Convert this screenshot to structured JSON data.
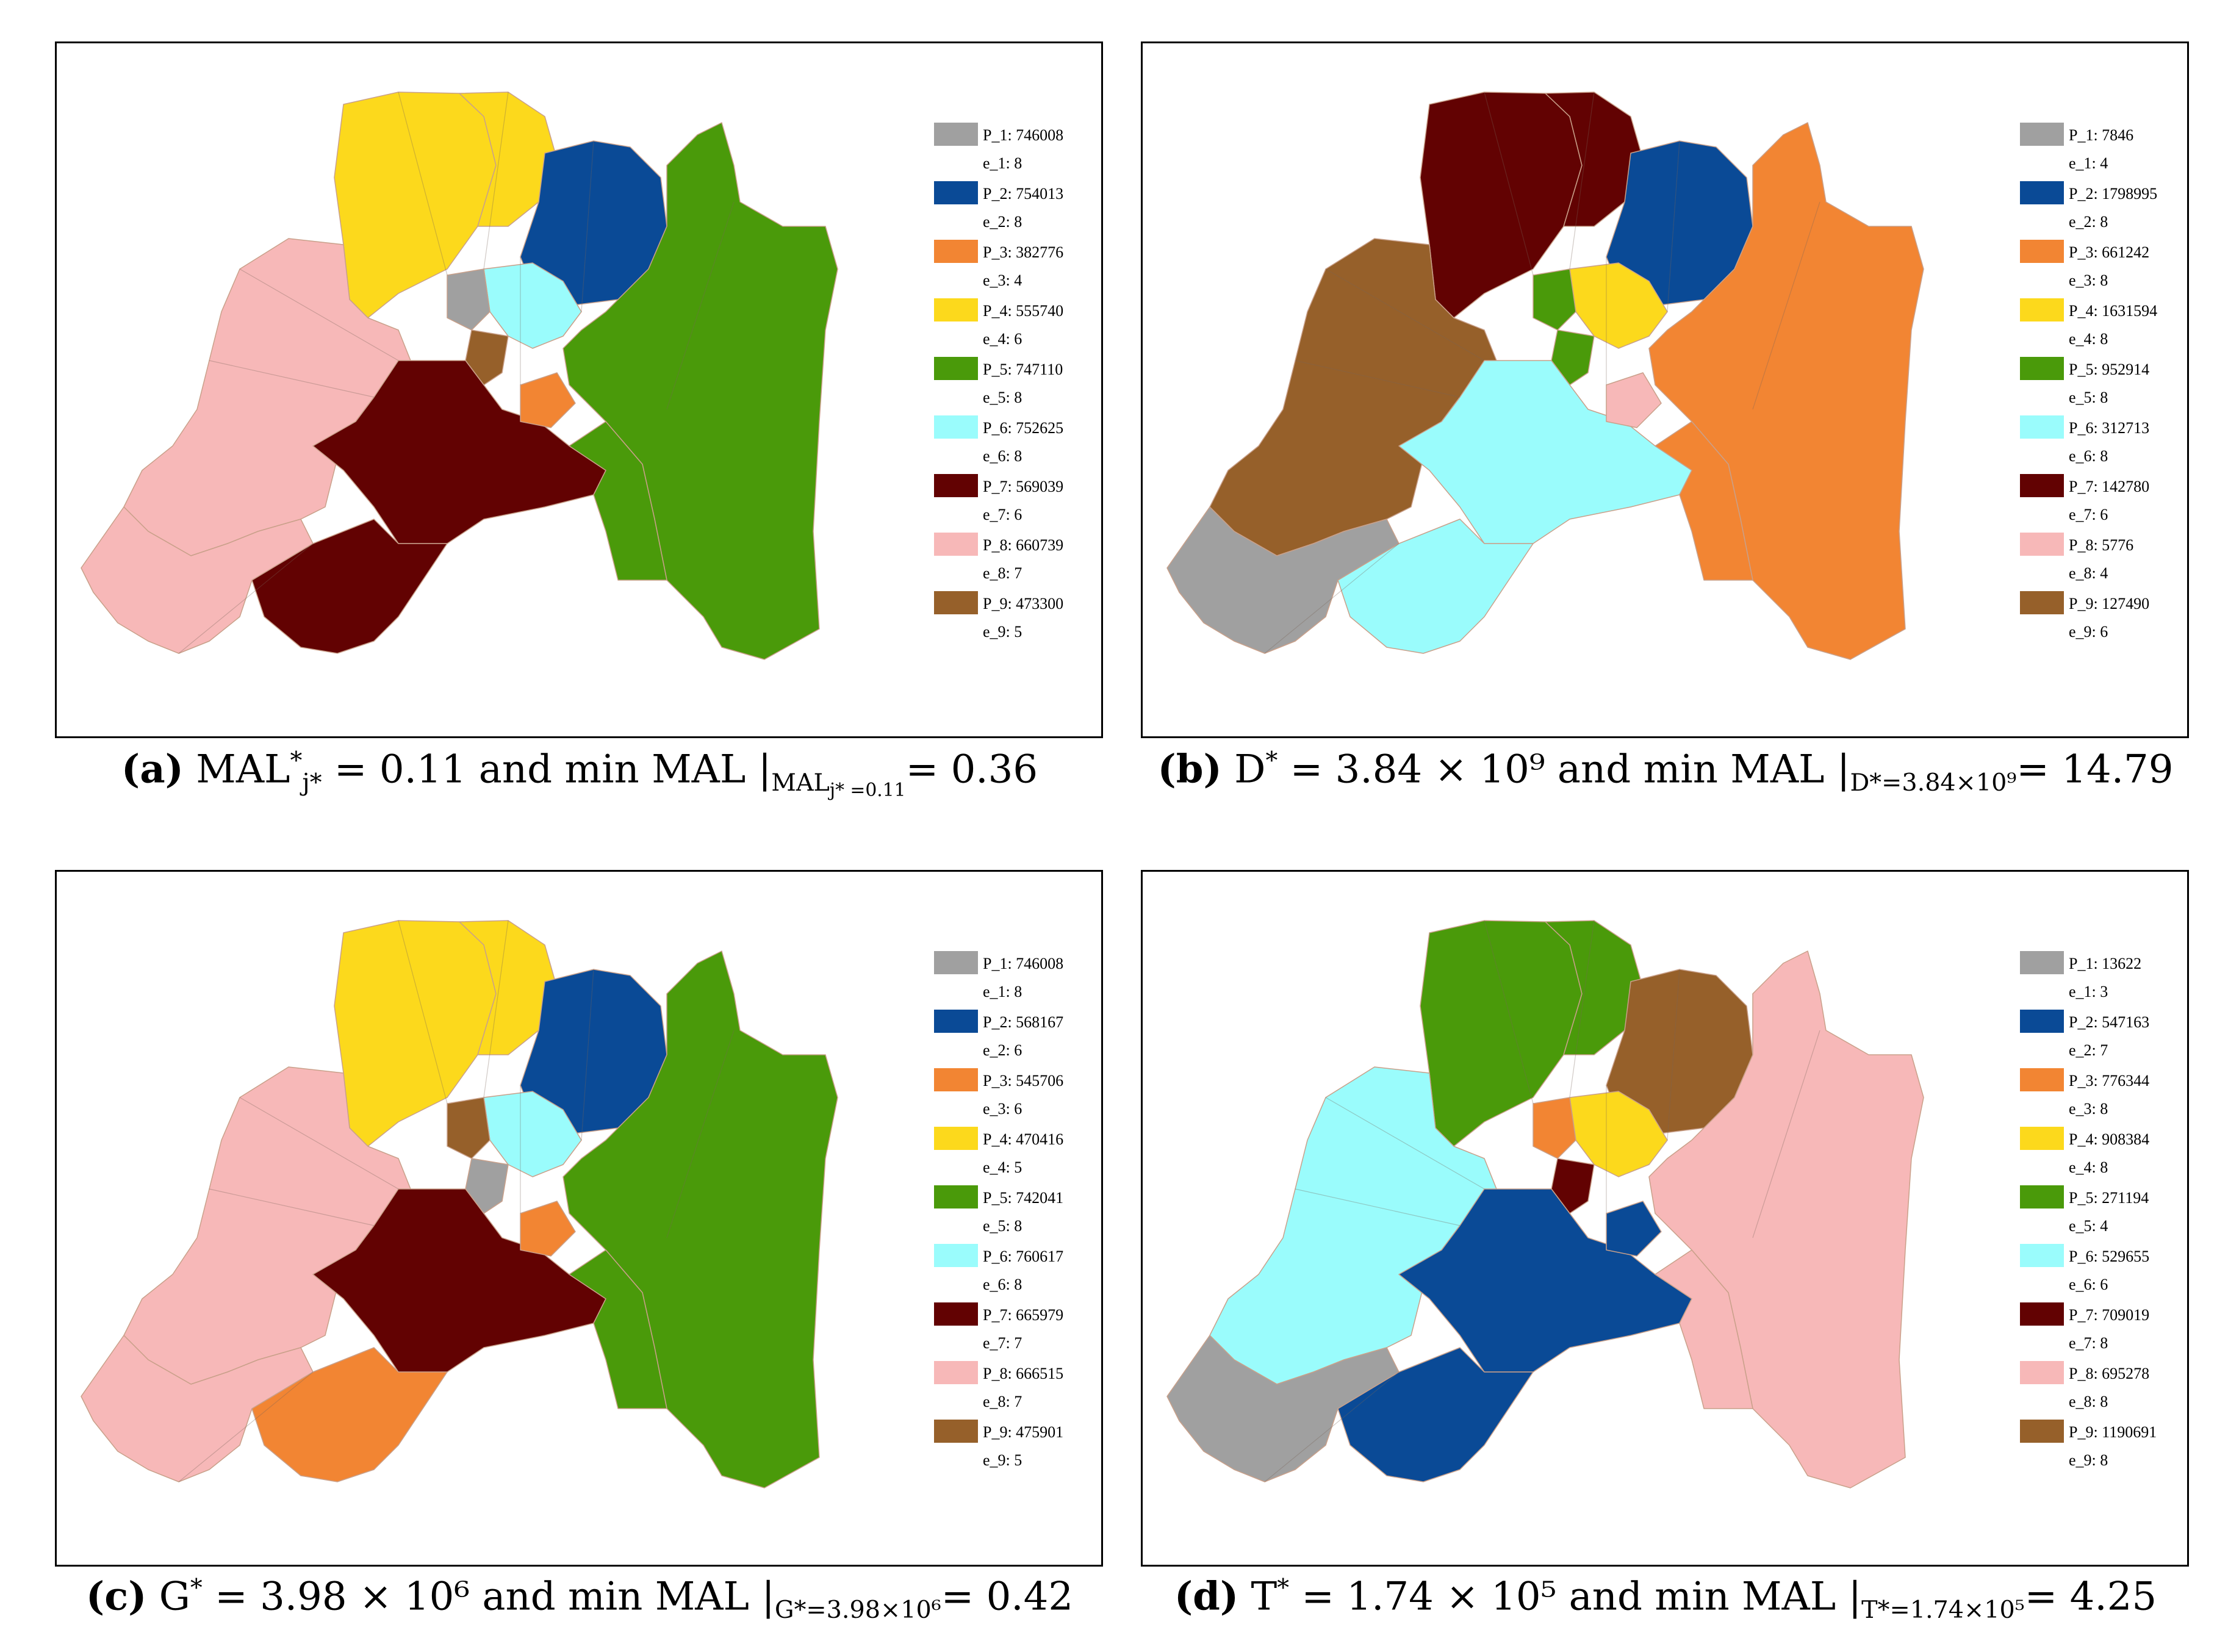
{
  "colors": {
    "P_1": "#a0a0a0",
    "P_2": "#0a4a96",
    "P_3": "#f28533",
    "P_4": "#fcd91c",
    "P_5": "#4a9a0a",
    "P_6": "#9afcfc",
    "P_7": "#620202",
    "P_8": "#f7b8b8",
    "P_9": "#96602a",
    "boundary": "#f2a070"
  },
  "panels": [
    {
      "id": "a",
      "caption": {
        "letter": "(a)",
        "main": "MAL",
        "sup": "*",
        "sub": "j*",
        "mid": " = 0.11 and min MAL |",
        "cond": "MAL",
        "cond_sub": "j* =0.11",
        "tail": "= 0.36"
      },
      "legend": [
        {
          "p": "P_1: 746008",
          "e": "e_1: 8"
        },
        {
          "p": "P_2: 754013",
          "e": "e_2: 8"
        },
        {
          "p": "P_3: 382776",
          "e": "e_3: 4"
        },
        {
          "p": "P_4: 555740",
          "e": "e_4: 6"
        },
        {
          "p": "P_5: 747110",
          "e": "e_5: 8"
        },
        {
          "p": "P_6: 752625",
          "e": "e_6: 8"
        },
        {
          "p": "P_7: 569039",
          "e": "e_7: 6"
        },
        {
          "p": "P_8: 660739",
          "e": "e_8: 7"
        },
        {
          "p": "P_9: 473300",
          "e": "e_9: 5"
        }
      ],
      "regions": {
        "NW": "P_4",
        "N": "P_4",
        "NE": "P_2",
        "E": "P_5",
        "W": "P_8",
        "C": "P_6",
        "CL": "P_1",
        "CR": "P_9",
        "SC": "P_7",
        "S": "P_7",
        "SW": "P_8",
        "SP": "P_3",
        "SE": "P_5"
      }
    },
    {
      "id": "b",
      "caption": {
        "letter": "(b)",
        "main": "D",
        "sup": "*",
        "sub": "",
        "mid": " = 3.84 × 10⁹ and min MAL |",
        "cond": "D*=3.84×10⁹",
        "cond_sub": "",
        "tail": "= 14.79"
      },
      "legend": [
        {
          "p": "P_1: 7846",
          "e": "e_1: 4"
        },
        {
          "p": "P_2: 1798995",
          "e": "e_2: 8"
        },
        {
          "p": "P_3: 661242",
          "e": "e_3: 8"
        },
        {
          "p": "P_4: 1631594",
          "e": "e_4: 8"
        },
        {
          "p": "P_5: 952914",
          "e": "e_5: 8"
        },
        {
          "p": "P_6: 312713",
          "e": "e_6: 8"
        },
        {
          "p": "P_7: 142780",
          "e": "e_7: 6"
        },
        {
          "p": "P_8: 5776",
          "e": "e_8: 4"
        },
        {
          "p": "P_9: 127490",
          "e": "e_9: 6"
        }
      ],
      "regions": {
        "NW": "P_7",
        "N": "P_7",
        "NE": "P_2",
        "E": "P_3",
        "W": "P_9",
        "C": "P_4",
        "CL": "P_5",
        "CR": "P_5",
        "SC": "P_6",
        "S": "P_6",
        "SW": "P_1",
        "SP": "P_8",
        "SE": "P_3"
      }
    },
    {
      "id": "c",
      "caption": {
        "letter": "(c)",
        "main": "G",
        "sup": "*",
        "sub": "",
        "mid": " = 3.98 × 10⁶ and min MAL |",
        "cond": "G*=3.98×10⁶",
        "cond_sub": "",
        "tail": "= 0.42"
      },
      "legend": [
        {
          "p": "P_1: 746008",
          "e": "e_1: 8"
        },
        {
          "p": "P_2: 568167",
          "e": "e_2: 6"
        },
        {
          "p": "P_3: 545706",
          "e": "e_3: 6"
        },
        {
          "p": "P_4: 470416",
          "e": "e_4: 5"
        },
        {
          "p": "P_5: 742041",
          "e": "e_5: 8"
        },
        {
          "p": "P_6: 760617",
          "e": "e_6: 8"
        },
        {
          "p": "P_7: 665979",
          "e": "e_7: 7"
        },
        {
          "p": "P_8: 666515",
          "e": "e_8: 7"
        },
        {
          "p": "P_9: 475901",
          "e": "e_9: 5"
        }
      ],
      "regions": {
        "NW": "P_4",
        "N": "P_4",
        "NE": "P_2",
        "E": "P_5",
        "W": "P_8",
        "C": "P_6",
        "CL": "P_9",
        "CR": "P_1",
        "SC": "P_7",
        "S": "P_3",
        "SW": "P_8",
        "SP": "P_3",
        "SE": "P_5"
      }
    },
    {
      "id": "d",
      "caption": {
        "letter": "(d)",
        "main": "T",
        "sup": "*",
        "sub": "",
        "mid": " = 1.74 × 10⁵ and min MAL |",
        "cond": "T*=1.74×10⁵",
        "cond_sub": "",
        "tail": "= 4.25"
      },
      "legend": [
        {
          "p": "P_1: 13622",
          "e": "e_1: 3"
        },
        {
          "p": "P_2: 547163",
          "e": "e_2: 7"
        },
        {
          "p": "P_3: 776344",
          "e": "e_3: 8"
        },
        {
          "p": "P_4: 908384",
          "e": "e_4: 8"
        },
        {
          "p": "P_5: 271194",
          "e": "e_5: 4"
        },
        {
          "p": "P_6: 529655",
          "e": "e_6: 6"
        },
        {
          "p": "P_7: 709019",
          "e": "e_7: 8"
        },
        {
          "p": "P_8: 695278",
          "e": "e_8: 8"
        },
        {
          "p": "P_9: 1190691",
          "e": "e_9: 8"
        }
      ],
      "regions": {
        "NW": "P_5",
        "N": "P_5",
        "NE": "P_9",
        "E": "P_8",
        "W": "P_6",
        "C": "P_4",
        "CL": "P_3",
        "CR": "P_7",
        "SC": "P_2",
        "S": "P_2",
        "SW": "P_1",
        "SP": "P_2",
        "SE": "P_8"
      }
    }
  ]
}
